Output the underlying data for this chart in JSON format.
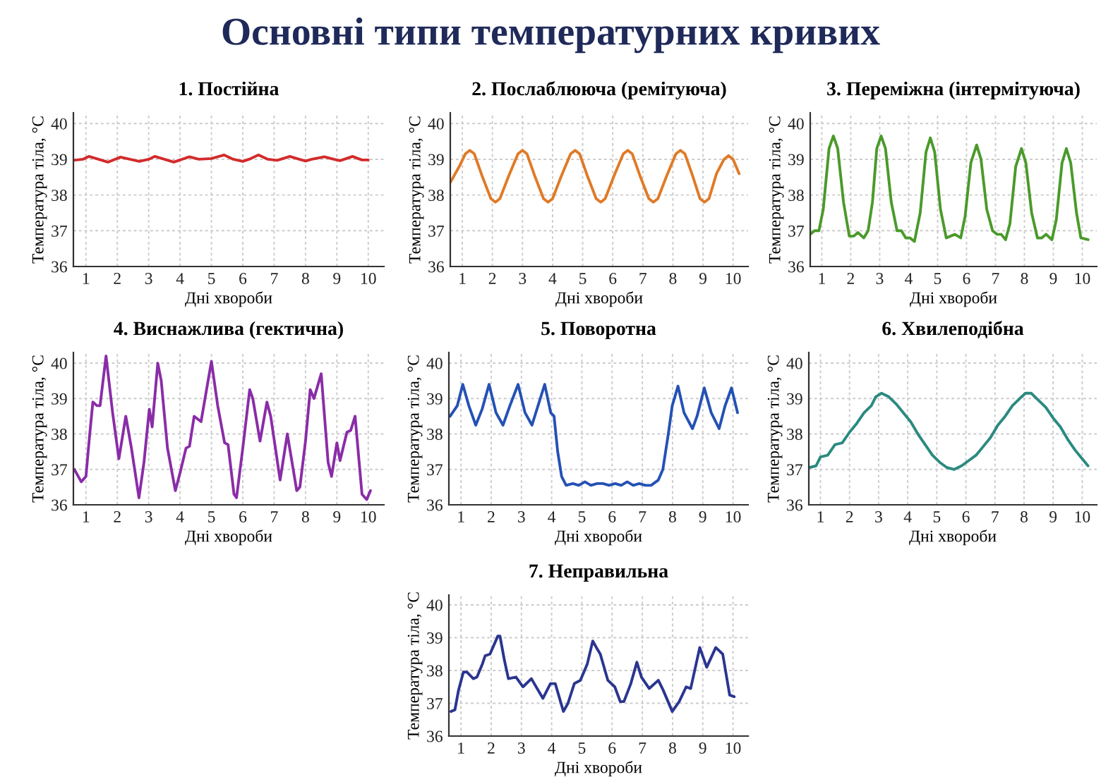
{
  "chart_data": [
    {
      "type": "line",
      "title": "1. Постійна",
      "xlabel": "Дні хвороби",
      "ylabel": "Температура тіла, °C",
      "annotations": [
        "Основні типи температурних кривих"
      ],
      "xlim": [
        0.6,
        10.5
      ],
      "ylim": [
        36,
        40.3
      ],
      "xticks": [
        1,
        2,
        3,
        4,
        5,
        6,
        7,
        8,
        9,
        10
      ],
      "yticks": [
        36,
        37,
        38,
        39,
        40
      ],
      "grid": true,
      "series": [
        {
          "color": "#d42a2a",
          "x": [
            0.6,
            0.9,
            1.1,
            1.4,
            1.7,
            2.1,
            2.4,
            2.7,
            3.0,
            3.2,
            3.5,
            3.8,
            4.3,
            4.6,
            5.0,
            5.4,
            5.7,
            6.0,
            6.2,
            6.5,
            6.8,
            7.1,
            7.5,
            7.8,
            8.0,
            8.2,
            8.6,
            8.9,
            9.1,
            9.5,
            9.8,
            10.0
          ],
          "values": [
            38.97,
            39.0,
            39.08,
            39.0,
            38.92,
            39.06,
            39.0,
            38.94,
            39.0,
            39.08,
            39.0,
            38.92,
            39.07,
            39.0,
            39.02,
            39.12,
            39.0,
            38.94,
            39.0,
            39.12,
            39.0,
            38.97,
            39.08,
            39.0,
            38.95,
            39.0,
            39.07,
            39.0,
            38.96,
            39.08,
            38.98,
            38.98
          ]
        }
      ]
    },
    {
      "type": "line",
      "title": "2. Послаблююча (ремітуюча)",
      "xlabel": "Дні хвороби",
      "ylabel": "Температура тіла, °C",
      "xlim": [
        0.6,
        10.5
      ],
      "ylim": [
        36,
        40.3
      ],
      "xticks": [
        1,
        2,
        3,
        4,
        5,
        6,
        7,
        8,
        9,
        10
      ],
      "yticks": [
        36,
        37,
        38,
        39,
        40
      ],
      "grid": true,
      "series": [
        {
          "color": "#e07a27",
          "x": [
            0.6,
            0.9,
            1.1,
            1.25,
            1.4,
            1.65,
            1.95,
            2.1,
            2.25,
            2.55,
            2.85,
            3.0,
            3.15,
            3.4,
            3.7,
            3.85,
            4.0,
            4.3,
            4.6,
            4.75,
            4.9,
            5.15,
            5.45,
            5.6,
            5.75,
            6.05,
            6.35,
            6.5,
            6.65,
            6.9,
            7.2,
            7.35,
            7.5,
            7.8,
            8.1,
            8.25,
            8.4,
            8.65,
            8.9,
            9.05,
            9.2,
            9.45,
            9.7,
            9.85,
            10.0,
            10.2
          ],
          "values": [
            38.35,
            38.8,
            39.15,
            39.25,
            39.15,
            38.55,
            37.9,
            37.8,
            37.9,
            38.55,
            39.15,
            39.25,
            39.15,
            38.55,
            37.9,
            37.8,
            37.9,
            38.55,
            39.15,
            39.25,
            39.15,
            38.55,
            37.9,
            37.8,
            37.9,
            38.55,
            39.15,
            39.25,
            39.15,
            38.55,
            37.9,
            37.8,
            37.9,
            38.55,
            39.15,
            39.25,
            39.15,
            38.55,
            37.9,
            37.8,
            37.9,
            38.6,
            39.0,
            39.1,
            39.0,
            38.6
          ]
        }
      ]
    },
    {
      "type": "line",
      "title": "3. Переміжна (інтермітуюча)",
      "xlabel": "Дні хвороби",
      "ylabel": "Температура тіла, °C",
      "xlim": [
        0.6,
        10.5
      ],
      "ylim": [
        36,
        40.3
      ],
      "xticks": [
        1,
        2,
        3,
        4,
        5,
        6,
        7,
        8,
        9,
        10
      ],
      "yticks": [
        36,
        37,
        38,
        39,
        40
      ],
      "grid": true,
      "series": [
        {
          "color": "#4a9a2a",
          "x": [
            0.6,
            0.75,
            0.9,
            1.05,
            1.25,
            1.4,
            1.55,
            1.75,
            1.95,
            2.1,
            2.25,
            2.45,
            2.6,
            2.75,
            2.9,
            3.05,
            3.2,
            3.4,
            3.6,
            3.75,
            3.9,
            4.05,
            4.2,
            4.4,
            4.6,
            4.75,
            4.9,
            5.1,
            5.3,
            5.45,
            5.6,
            5.8,
            5.95,
            6.15,
            6.35,
            6.5,
            6.7,
            6.9,
            7.05,
            7.2,
            7.35,
            7.5,
            7.7,
            7.9,
            8.05,
            8.25,
            8.45,
            8.6,
            8.75,
            8.95,
            9.1,
            9.3,
            9.45,
            9.6,
            9.8,
            9.95,
            10.2
          ],
          "values": [
            36.9,
            37.0,
            37.0,
            37.6,
            39.3,
            39.65,
            39.3,
            37.8,
            36.85,
            36.85,
            36.95,
            36.8,
            37.0,
            37.8,
            39.3,
            39.65,
            39.3,
            37.8,
            37.0,
            37.0,
            36.8,
            36.8,
            36.7,
            37.5,
            39.2,
            39.6,
            39.2,
            37.6,
            36.8,
            36.85,
            36.9,
            36.8,
            37.4,
            38.9,
            39.4,
            39.0,
            37.6,
            37.0,
            36.9,
            36.9,
            36.75,
            37.2,
            38.8,
            39.3,
            38.9,
            37.5,
            36.8,
            36.8,
            36.9,
            36.75,
            37.3,
            38.9,
            39.3,
            38.9,
            37.5,
            36.8,
            36.75
          ]
        }
      ]
    },
    {
      "type": "line",
      "title": "4. Виснажлива (гектична)",
      "xlabel": "Дні хвороби",
      "ylabel": "Температура тіла, °C",
      "xlim": [
        0.6,
        10.5
      ],
      "ylim": [
        36,
        40.3
      ],
      "xticks": [
        1,
        2,
        3,
        4,
        5,
        6,
        7,
        8,
        9,
        10
      ],
      "yticks": [
        36,
        37,
        38,
        39,
        40
      ],
      "grid": true,
      "series": [
        {
          "color": "#8a2ca8",
          "x": [
            0.63,
            0.85,
            1.0,
            1.1,
            1.22,
            1.35,
            1.45,
            1.64,
            1.85,
            2.05,
            2.27,
            2.45,
            2.69,
            2.85,
            3.02,
            3.11,
            3.29,
            3.4,
            3.6,
            3.85,
            4.0,
            4.19,
            4.3,
            4.45,
            4.67,
            5.0,
            5.2,
            5.42,
            5.53,
            5.72,
            5.8,
            6.0,
            6.22,
            6.32,
            6.55,
            6.77,
            6.89,
            7.19,
            7.42,
            7.72,
            7.82,
            8.0,
            8.15,
            8.27,
            8.5,
            8.72,
            8.83,
            9.0,
            9.1,
            9.32,
            9.44,
            9.58,
            9.8,
            9.95,
            10.07
          ],
          "values": [
            37.0,
            36.65,
            36.8,
            37.8,
            38.9,
            38.8,
            38.8,
            40.2,
            38.6,
            37.3,
            38.5,
            37.6,
            36.2,
            37.2,
            38.7,
            38.2,
            40.0,
            39.5,
            37.6,
            36.4,
            36.9,
            37.6,
            37.65,
            38.5,
            38.35,
            40.05,
            38.8,
            37.75,
            37.7,
            36.3,
            36.2,
            37.6,
            39.25,
            39.0,
            37.8,
            38.9,
            38.5,
            36.7,
            38.0,
            36.4,
            36.5,
            37.8,
            39.25,
            39.0,
            39.7,
            37.2,
            36.8,
            37.75,
            37.25,
            38.05,
            38.1,
            38.5,
            36.3,
            36.15,
            36.4
          ]
        }
      ]
    },
    {
      "type": "line",
      "title": "5. Поворотна",
      "xlabel": "Дні хвороби",
      "ylabel": "Температура тіла, °C",
      "xlim": [
        0.6,
        10.5
      ],
      "ylim": [
        36,
        40.3
      ],
      "xticks": [
        1,
        2,
        3,
        4,
        5,
        6,
        7,
        8,
        9,
        10
      ],
      "yticks": [
        36,
        37,
        38,
        39,
        40
      ],
      "grid": true,
      "series": [
        {
          "color": "#2451b5",
          "x": [
            0.64,
            0.88,
            1.06,
            1.26,
            1.49,
            1.7,
            1.93,
            2.16,
            2.39,
            2.62,
            2.89,
            3.12,
            3.35,
            3.55,
            3.77,
            3.97,
            4.08,
            4.2,
            4.33,
            4.48,
            4.7,
            4.9,
            5.1,
            5.3,
            5.5,
            5.7,
            5.9,
            6.1,
            6.3,
            6.5,
            6.7,
            6.9,
            7.1,
            7.29,
            7.53,
            7.68,
            7.86,
            7.99,
            8.18,
            8.38,
            8.66,
            8.81,
            9.05,
            9.28,
            9.54,
            9.74,
            9.95,
            10.15
          ],
          "values": [
            38.5,
            38.8,
            39.4,
            38.8,
            38.25,
            38.7,
            39.4,
            38.6,
            38.25,
            38.8,
            39.4,
            38.6,
            38.25,
            38.8,
            39.4,
            38.6,
            38.5,
            37.5,
            36.8,
            36.55,
            36.6,
            36.55,
            36.65,
            36.55,
            36.6,
            36.6,
            36.55,
            36.6,
            36.55,
            36.65,
            36.55,
            36.6,
            36.55,
            36.55,
            36.7,
            37.0,
            38.0,
            38.8,
            39.35,
            38.6,
            38.15,
            38.5,
            39.3,
            38.6,
            38.15,
            38.8,
            39.3,
            38.6
          ]
        }
      ]
    },
    {
      "type": "line",
      "title": "6. Хвилеподібна",
      "xlabel": "Дні хвороби",
      "ylabel": "Температура тіла, °C",
      "xlim": [
        0.6,
        10.5
      ],
      "ylim": [
        36,
        40.3
      ],
      "xticks": [
        1,
        2,
        3,
        4,
        5,
        6,
        7,
        8,
        9,
        10
      ],
      "yticks": [
        36,
        37,
        38,
        39,
        40
      ],
      "grid": true,
      "series": [
        {
          "color": "#2a8a80",
          "x": [
            0.6,
            0.85,
            1.0,
            1.25,
            1.5,
            1.75,
            2.0,
            2.25,
            2.5,
            2.75,
            2.9,
            3.1,
            3.35,
            3.6,
            3.85,
            4.1,
            4.35,
            4.6,
            4.85,
            5.1,
            5.35,
            5.6,
            5.85,
            6.1,
            6.35,
            6.6,
            6.85,
            7.1,
            7.35,
            7.6,
            7.85,
            8.05,
            8.25,
            8.5,
            8.75,
            9.0,
            9.25,
            9.5,
            9.75,
            10.0,
            10.2
          ],
          "values": [
            37.05,
            37.1,
            37.35,
            37.4,
            37.7,
            37.75,
            38.05,
            38.3,
            38.6,
            38.8,
            39.05,
            39.15,
            39.05,
            38.85,
            38.6,
            38.35,
            38.0,
            37.7,
            37.4,
            37.2,
            37.05,
            37.0,
            37.1,
            37.25,
            37.4,
            37.65,
            37.9,
            38.25,
            38.5,
            38.8,
            39.0,
            39.15,
            39.15,
            38.95,
            38.75,
            38.45,
            38.2,
            37.85,
            37.55,
            37.3,
            37.1
          ]
        }
      ]
    },
    {
      "type": "line",
      "title": "7. Неправильна",
      "xlabel": "Дні хвороби",
      "ylabel": "Температура тіла, °C",
      "xlim": [
        0.6,
        10.5
      ],
      "ylim": [
        36,
        40.3
      ],
      "xticks": [
        1,
        2,
        3,
        4,
        5,
        6,
        7,
        8,
        9,
        10
      ],
      "yticks": [
        36,
        37,
        38,
        39,
        40
      ],
      "grid": true,
      "series": [
        {
          "color": "#2a3590",
          "x": [
            0.67,
            0.8,
            0.92,
            1.08,
            1.2,
            1.41,
            1.53,
            1.71,
            1.8,
            1.96,
            2.22,
            2.29,
            2.44,
            2.57,
            2.82,
            3.05,
            3.33,
            3.71,
            3.96,
            4.12,
            4.39,
            4.54,
            4.75,
            4.95,
            5.18,
            5.36,
            5.48,
            5.61,
            5.86,
            6.09,
            6.27,
            6.39,
            6.62,
            6.82,
            6.97,
            7.23,
            7.53,
            7.69,
            7.99,
            8.22,
            8.45,
            8.6,
            8.9,
            9.13,
            9.43,
            9.66,
            9.89,
            10.04
          ],
          "values": [
            36.75,
            36.8,
            37.4,
            37.95,
            37.95,
            37.75,
            37.8,
            38.2,
            38.45,
            38.5,
            39.05,
            39.05,
            38.3,
            37.75,
            37.8,
            37.5,
            37.75,
            37.15,
            37.6,
            37.6,
            36.75,
            37.0,
            37.6,
            37.7,
            38.2,
            38.9,
            38.7,
            38.5,
            37.7,
            37.5,
            37.05,
            37.05,
            37.6,
            38.25,
            37.8,
            37.45,
            37.7,
            37.4,
            36.75,
            37.05,
            37.5,
            37.45,
            38.7,
            38.1,
            38.7,
            38.5,
            37.25,
            37.2
          ]
        }
      ]
    }
  ]
}
